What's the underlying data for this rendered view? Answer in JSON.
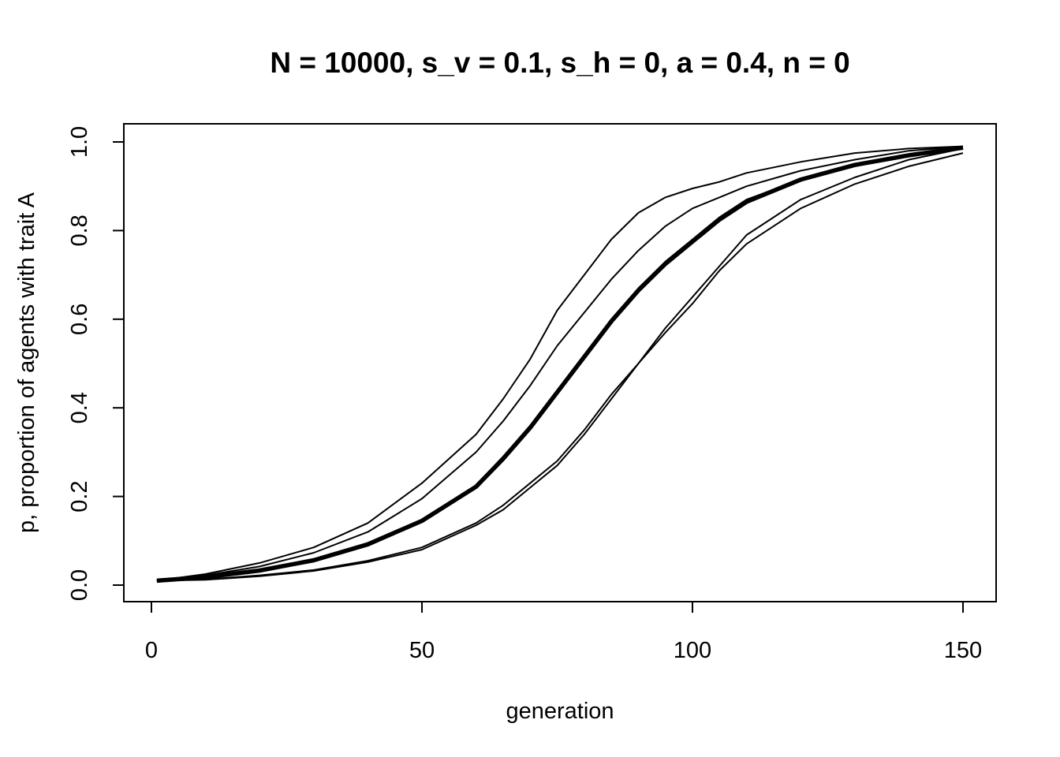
{
  "chart_data": {
    "type": "line",
    "title": "N = 10000, s_v = 0.1, s_h = 0, a = 0.4, n = 0",
    "xlabel": "generation",
    "ylabel": "p, proportion of agents with trait A",
    "xlim": [
      1,
      150
    ],
    "ylim": [
      0,
      1
    ],
    "x_ticks": [
      0,
      50,
      100,
      150
    ],
    "x_tick_labels": [
      "0",
      "50",
      "100",
      "150"
    ],
    "y_ticks": [
      0,
      0.2,
      0.4,
      0.6,
      0.8,
      1.0
    ],
    "y_tick_labels": [
      "0.0",
      "0.2",
      "0.4",
      "0.6",
      "0.8",
      "1.0"
    ],
    "grid": false,
    "legend": "none",
    "x": [
      1,
      10,
      20,
      30,
      40,
      50,
      60,
      65,
      70,
      75,
      80,
      85,
      90,
      95,
      100,
      105,
      110,
      120,
      130,
      140,
      150
    ],
    "series": [
      {
        "values": [
          0.01,
          0.025,
          0.05,
          0.085,
          0.14,
          0.23,
          0.34,
          0.42,
          0.51,
          0.62,
          0.7,
          0.78,
          0.84,
          0.875,
          0.895,
          0.91,
          0.93,
          0.955,
          0.975,
          0.985,
          0.99
        ]
      },
      {
        "values": [
          0.01,
          0.022,
          0.042,
          0.073,
          0.12,
          0.195,
          0.3,
          0.37,
          0.45,
          0.54,
          0.615,
          0.69,
          0.755,
          0.81,
          0.85,
          0.875,
          0.9,
          0.935,
          0.96,
          0.98,
          0.99
        ]
      },
      {
        "values": [
          0.01,
          0.02,
          0.035,
          0.058,
          0.095,
          0.148,
          0.225,
          0.29,
          0.36,
          0.44,
          0.52,
          0.6,
          0.67,
          0.73,
          0.78,
          0.83,
          0.87,
          0.915,
          0.945,
          0.97,
          0.985
        ]
      },
      {
        "values": [
          0.01,
          0.013,
          0.022,
          0.034,
          0.055,
          0.085,
          0.14,
          0.18,
          0.23,
          0.28,
          0.35,
          0.43,
          0.5,
          0.57,
          0.635,
          0.71,
          0.77,
          0.85,
          0.905,
          0.945,
          0.975
        ]
      },
      {
        "values": [
          0.01,
          0.012,
          0.02,
          0.032,
          0.052,
          0.08,
          0.135,
          0.17,
          0.22,
          0.27,
          0.34,
          0.42,
          0.5,
          0.58,
          0.65,
          0.72,
          0.79,
          0.87,
          0.92,
          0.96,
          0.985
        ]
      },
      {
        "values": [
          0.01,
          0.018,
          0.033,
          0.056,
          0.092,
          0.145,
          0.222,
          0.285,
          0.355,
          0.435,
          0.515,
          0.595,
          0.665,
          0.725,
          0.775,
          0.825,
          0.865,
          0.915,
          0.948,
          0.97,
          0.987
        ]
      }
    ]
  }
}
